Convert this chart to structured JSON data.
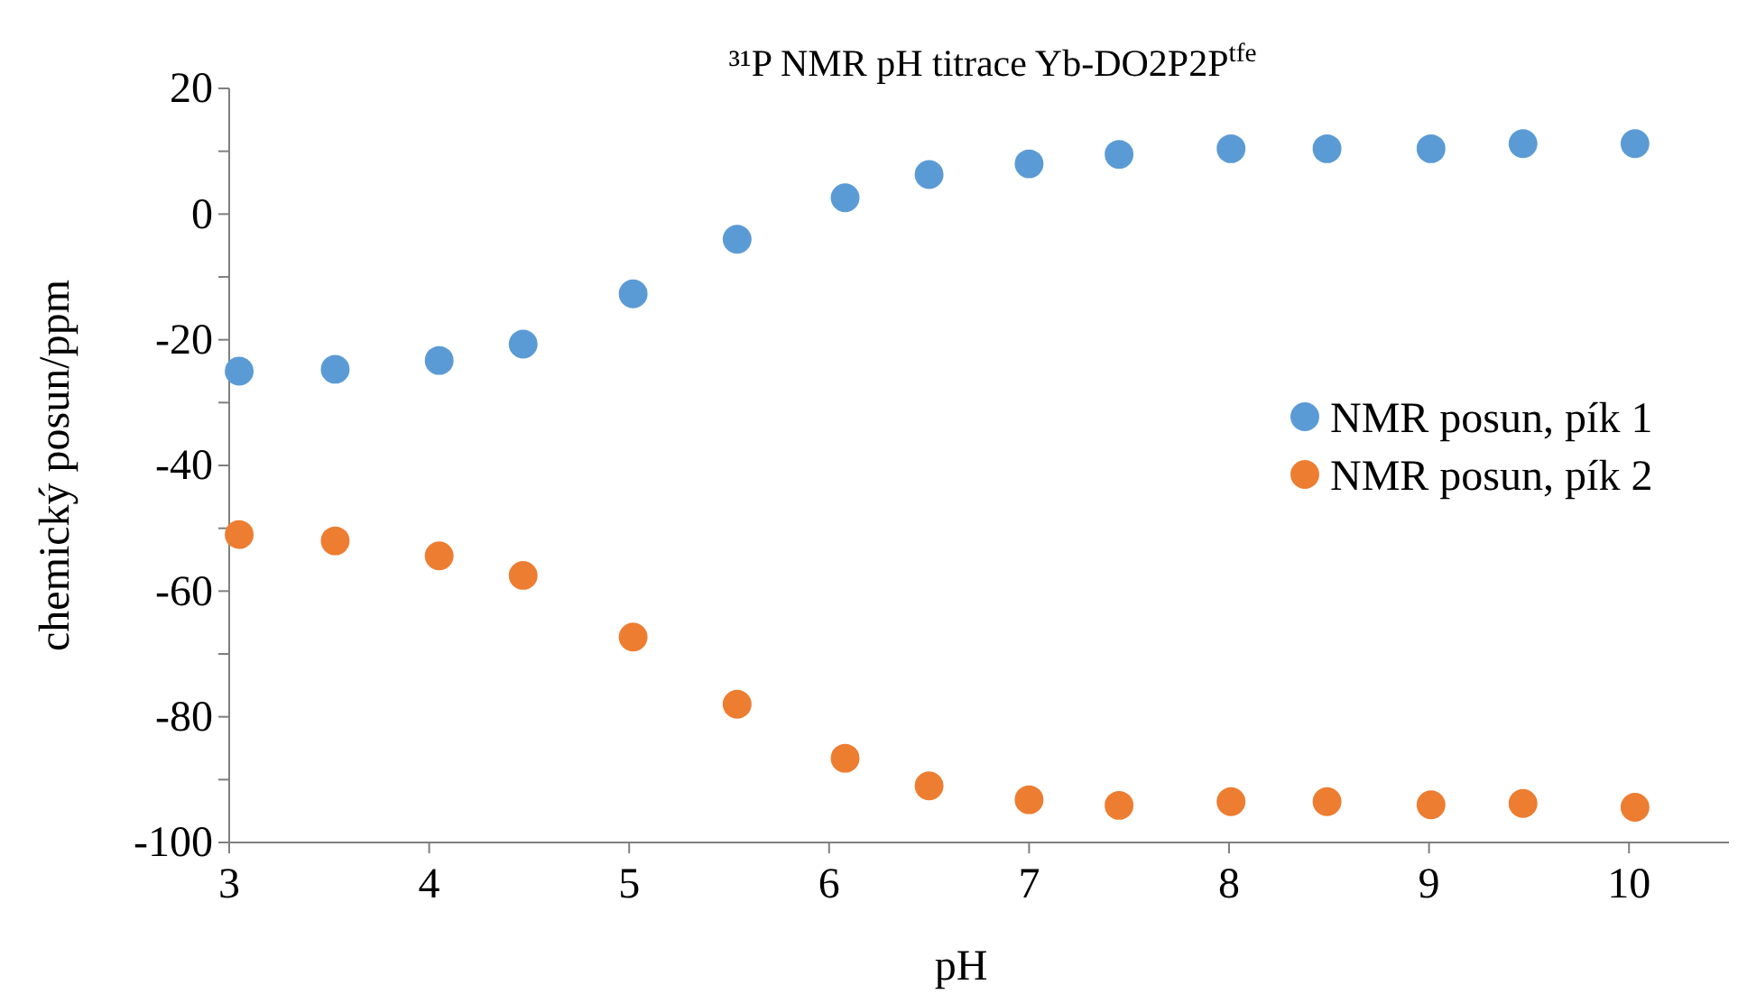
{
  "chart_data": {
    "type": "scatter",
    "title": "³¹P NMR pH titrace Yb-DO2P2P$^{tfe}$",
    "xlabel": "pH",
    "ylabel": "chemický posun/ppm",
    "xlim": [
      3,
      10.5
    ],
    "xticks": [
      3,
      4,
      5,
      6,
      7,
      8,
      9,
      10
    ],
    "ylim": [
      -100,
      20
    ],
    "yticks": [
      -100,
      {
        "value": -90,
        "label": null
      },
      -80,
      {
        "value": -70,
        "label": null
      },
      -60,
      {
        "value": -50,
        "label": null
      },
      -40,
      {
        "value": -30,
        "label": null
      },
      -20,
      {
        "value": -10,
        "label": null
      },
      0,
      {
        "value": 10,
        "label": null
      },
      20
    ],
    "grid": false,
    "legend": "right",
    "marker": "circle",
    "series": [
      {
        "name": "NMR posun, pík 1",
        "color": "#5b9bd5",
        "x": [
          3.05,
          3.53,
          4.05,
          4.47,
          5.02,
          5.54,
          6.08,
          6.5,
          7.0,
          7.45,
          8.01,
          8.49,
          9.01,
          9.47,
          10.03
        ],
        "values": [
          -25,
          -24.7,
          -23.3,
          -20.7,
          -12.7,
          -4,
          2.6,
          6.3,
          8,
          9.5,
          10.4,
          10.4,
          10.4,
          11.2,
          11.2
        ]
      },
      {
        "name": "NMR posun, pík 2",
        "color": "#ed7d31",
        "x": [
          3.05,
          3.53,
          4.05,
          4.47,
          5.02,
          5.54,
          6.08,
          6.5,
          7.0,
          7.45,
          8.01,
          8.49,
          9.01,
          9.47,
          10.03
        ],
        "values": [
          -51,
          -52,
          -54.4,
          -57.5,
          -67.3,
          -78,
          -86.6,
          -91,
          -93.2,
          -94.1,
          -93.5,
          -93.5,
          -94,
          -93.8,
          -94.4
        ]
      }
    ]
  }
}
